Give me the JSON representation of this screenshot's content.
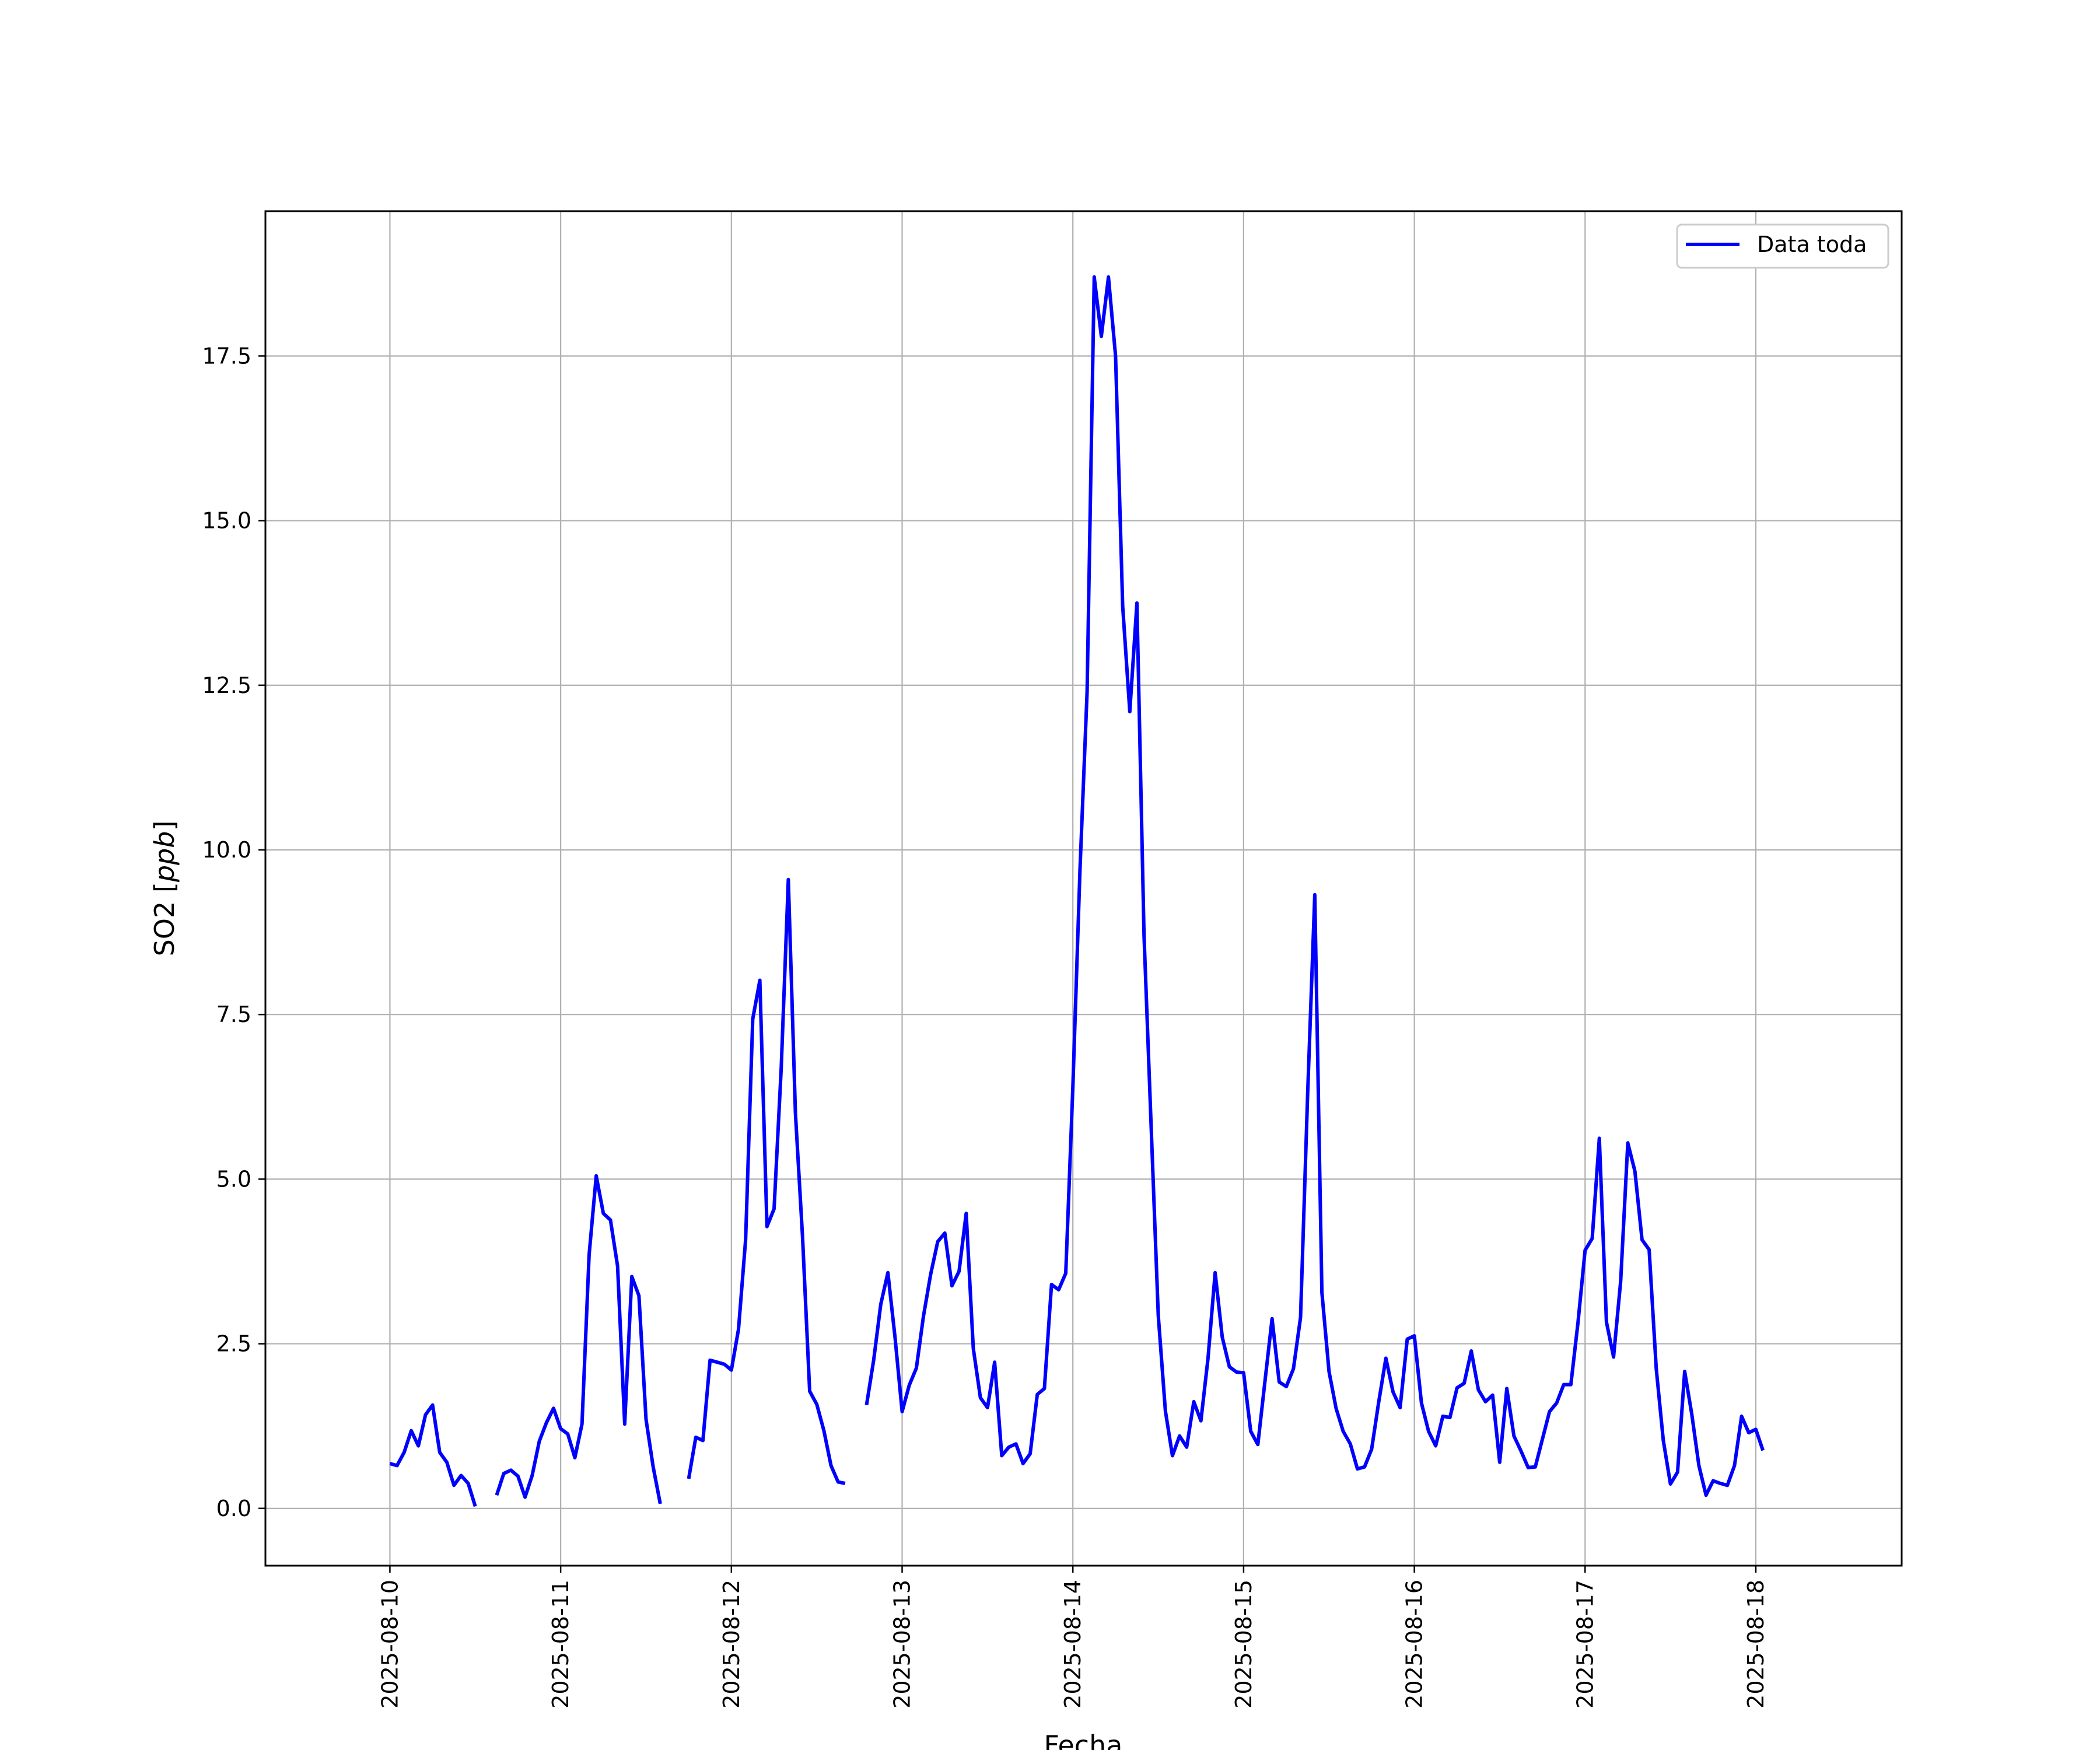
{
  "chart_data": {
    "type": "line",
    "xlabel": "Fecha",
    "ylabel": "SO2 [ppb]",
    "ylabel_parts": {
      "prefix": "SO2 [",
      "unit": "ppb",
      "suffix": "]"
    },
    "x_start": "2025-08-10",
    "x_end": "2025-08-18",
    "x_step_hours": 1,
    "xlim": [
      "2025-08-09 06:30",
      "2025-08-18 20:30"
    ],
    "ylim": [
      -0.87,
      19.7
    ],
    "x_tick_labels": [
      "2025-08-10",
      "2025-08-11",
      "2025-08-12",
      "2025-08-13",
      "2025-08-14",
      "2025-08-15",
      "2025-08-16",
      "2025-08-17",
      "2025-08-18"
    ],
    "y_ticks": [
      0.0,
      2.5,
      5.0,
      7.5,
      10.0,
      12.5,
      15.0,
      17.5
    ],
    "y_tick_labels": [
      "0.0",
      "2.5",
      "5.0",
      "7.5",
      "10.0",
      "12.5",
      "15.0",
      "17.5"
    ],
    "grid": true,
    "legend_position": "top-right",
    "series": [
      {
        "name": "Data toda",
        "color": "#0000ff",
        "values": [
          0.68,
          0.65,
          0.85,
          1.18,
          0.95,
          1.42,
          1.57,
          0.85,
          0.7,
          0.35,
          0.5,
          0.38,
          0.03,
          null,
          null,
          0.2,
          0.53,
          0.58,
          0.49,
          0.17,
          0.5,
          1.02,
          1.3,
          1.52,
          1.21,
          1.13,
          0.77,
          1.28,
          3.85,
          5.05,
          4.48,
          4.38,
          3.68,
          1.28,
          3.52,
          3.23,
          1.35,
          0.63,
          0.07,
          null,
          null,
          null,
          0.45,
          1.08,
          1.03,
          2.25,
          2.22,
          2.19,
          2.1,
          2.72,
          4.08,
          7.43,
          8.02,
          4.28,
          4.55,
          6.68,
          9.55,
          6.0,
          4.12,
          1.78,
          1.58,
          1.18,
          0.65,
          0.4,
          0.38,
          null,
          null,
          1.57,
          2.25,
          3.1,
          3.58,
          2.6,
          1.47,
          1.87,
          2.13,
          2.92,
          3.55,
          4.05,
          4.18,
          3.38,
          3.6,
          4.48,
          2.43,
          1.68,
          1.53,
          2.22,
          0.8,
          0.93,
          0.98,
          0.68,
          0.83,
          1.73,
          1.82,
          3.4,
          3.32,
          3.57,
          6.4,
          9.7,
          12.4,
          18.7,
          17.8,
          18.7,
          17.5,
          13.7,
          12.1,
          13.75,
          8.7,
          5.8,
          2.93,
          1.48,
          0.8,
          1.1,
          0.93,
          1.62,
          1.33,
          2.28,
          3.58,
          2.6,
          2.15,
          2.07,
          2.06,
          1.17,
          0.97,
          1.93,
          2.88,
          1.92,
          1.85,
          2.12,
          2.9,
          6.3,
          9.32,
          3.28,
          2.08,
          1.52,
          1.17,
          0.98,
          0.6,
          0.63,
          0.9,
          1.62,
          2.28,
          1.77,
          1.53,
          2.57,
          2.62,
          1.6,
          1.17,
          0.95,
          1.4,
          1.38,
          1.83,
          1.9,
          2.39,
          1.8,
          1.62,
          1.72,
          0.7,
          1.82,
          1.1,
          0.87,
          0.62,
          0.63,
          1.05,
          1.47,
          1.6,
          1.88,
          1.88,
          2.82,
          3.92,
          4.1,
          5.62,
          2.83,
          2.3,
          3.45,
          5.55,
          5.12,
          4.08,
          3.93,
          2.12,
          1.03,
          0.37,
          0.55,
          2.08,
          1.43,
          0.65,
          0.2,
          0.42,
          0.38,
          0.35,
          0.65,
          1.4,
          1.15,
          1.2,
          0.88
        ]
      }
    ]
  }
}
